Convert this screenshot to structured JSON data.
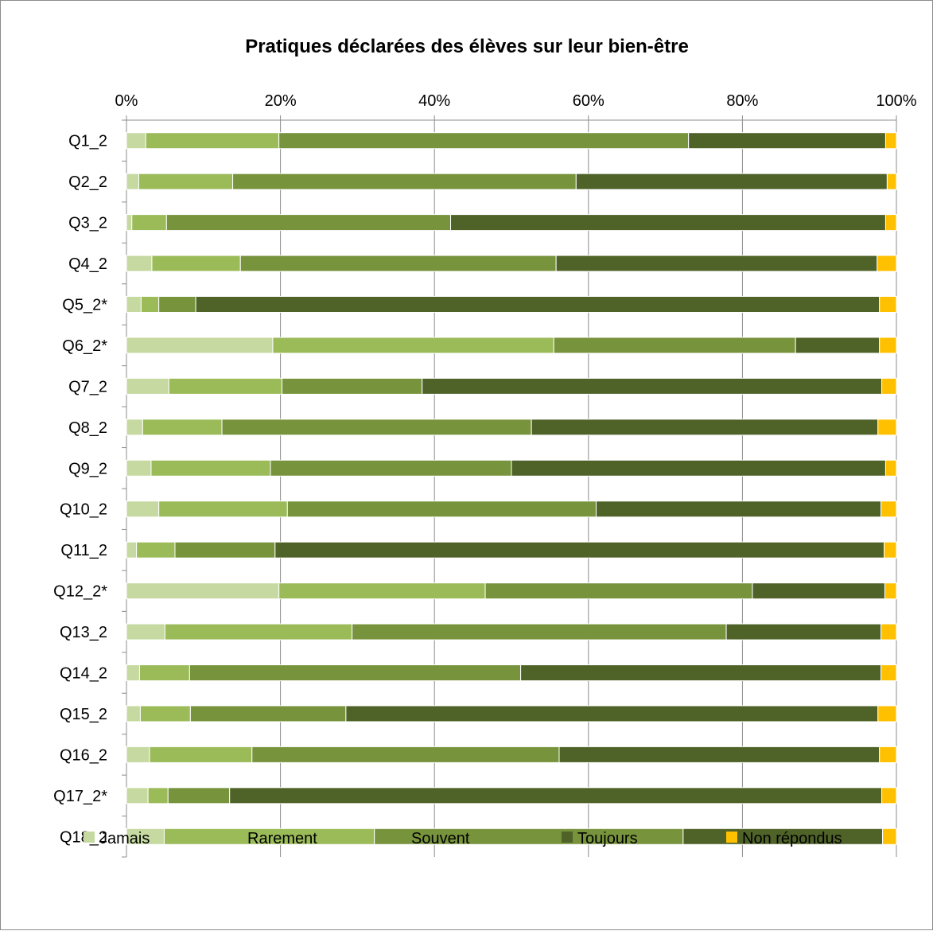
{
  "chart_data": {
    "type": "bar",
    "orientation": "horizontal",
    "stacked": true,
    "title": "Pratiques déclarées des élèves sur leur bien-être",
    "xlim": [
      0,
      100
    ],
    "x_ticks": [
      "0%",
      "20%",
      "40%",
      "60%",
      "80%",
      "100%"
    ],
    "x_axis_position": "top",
    "grid": true,
    "legend_position": "bottom",
    "categories": [
      "Q1_2",
      "Q2_2",
      "Q3_2",
      "Q4_2",
      "Q5_2*",
      "Q6_2*",
      "Q7_2",
      "Q8_2",
      "Q9_2",
      "Q10_2",
      "Q11_2",
      "Q12_2*",
      "Q13_2",
      "Q14_2",
      "Q15_2",
      "Q16_2",
      "Q17_2*",
      "Q18_2"
    ],
    "series": [
      {
        "name": "Jamais",
        "color": "#c5d9a1",
        "values": [
          2.5,
          1.6,
          0.7,
          3.3,
          1.9,
          19,
          5.5,
          2.1,
          3.2,
          4.2,
          1.3,
          19.8,
          5,
          1.7,
          1.8,
          3,
          2.8,
          4.9
        ]
      },
      {
        "name": "Rarement",
        "color": "#9bbb59",
        "values": [
          17.3,
          12.2,
          4.5,
          11.5,
          2.3,
          36.5,
          14.7,
          10.3,
          15.5,
          16.7,
          5,
          26.8,
          24.3,
          6.5,
          6.5,
          13.3,
          2.6,
          27.3
        ]
      },
      {
        "name": "Souvent",
        "color": "#77933c",
        "values": [
          53.2,
          44.6,
          36.9,
          41,
          4.8,
          31.4,
          18.2,
          40.2,
          31.3,
          40.1,
          13,
          34.7,
          48.6,
          43,
          20.2,
          39.9,
          8,
          40.1
        ]
      },
      {
        "name": "Toujours",
        "color": "#4f6228",
        "values": [
          25.6,
          40.4,
          56.5,
          41.7,
          88.8,
          10.9,
          59.7,
          45,
          48.6,
          37,
          79.1,
          17.2,
          20.1,
          46.8,
          69.1,
          41.6,
          84.7,
          25.9
        ]
      },
      {
        "name": "Non répondus",
        "color": "#ffc000",
        "values": [
          1.4,
          1.2,
          1.4,
          2.5,
          2.2,
          2.2,
          1.9,
          2.4,
          1.4,
          2,
          1.6,
          1.5,
          2,
          2,
          2.4,
          2.2,
          1.9,
          1.8
        ]
      }
    ]
  }
}
